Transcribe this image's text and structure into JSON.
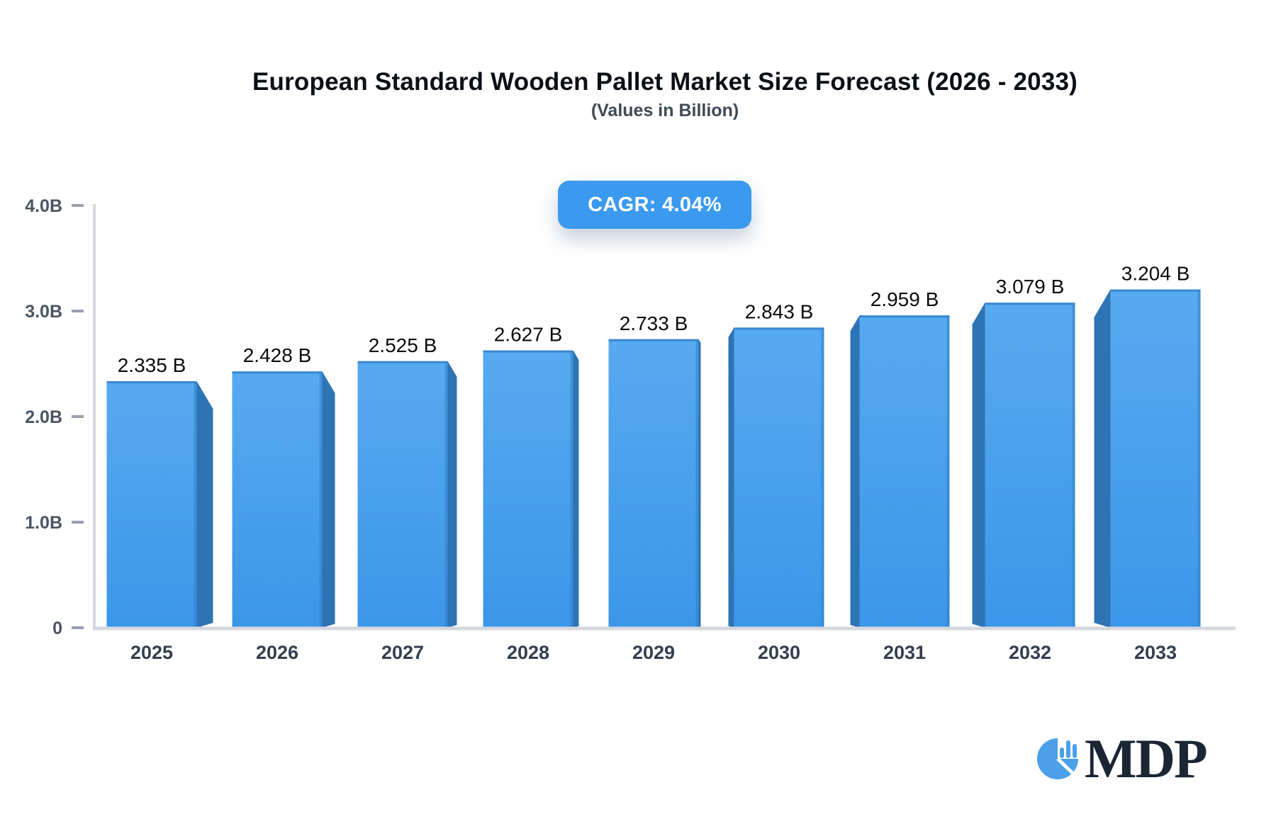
{
  "header": {
    "title": "European Standard Wooden Pallet Market Size Forecast (2026 - 2033)",
    "subtitle": "(Values in Billion)"
  },
  "badge": {
    "label": "CAGR: 4.04%",
    "bg": "#3b9af0",
    "text_color": "#ffffff"
  },
  "chart_data": {
    "type": "bar",
    "title": "European Standard Wooden Pallet Market Size Forecast (2026 - 2033)",
    "subtitle": "(Values in Billion)",
    "annotation": "CAGR: 4.04%",
    "categories": [
      "2025",
      "2026",
      "2027",
      "2028",
      "2029",
      "2030",
      "2031",
      "2032",
      "2033"
    ],
    "values": [
      2.335,
      2.428,
      2.525,
      2.627,
      2.733,
      2.843,
      2.959,
      3.079,
      3.204
    ],
    "value_labels": [
      "2.335 B",
      "2.428 B",
      "2.525 B",
      "2.627 B",
      "2.733 B",
      "2.843 B",
      "2.959 B",
      "3.079 B",
      "3.204 B"
    ],
    "unit": "Billion",
    "xlabel": "",
    "ylabel": "",
    "ylim": [
      0,
      4
    ],
    "grid": false,
    "legend": "none",
    "yticks": [
      {
        "value": 4,
        "label": "4.0B"
      },
      {
        "value": 3,
        "label": "3.0B"
      },
      {
        "value": 2,
        "label": "2.0B"
      },
      {
        "value": 1,
        "label": "1.0B"
      },
      {
        "value": 0,
        "label": "0"
      }
    ],
    "colors": {
      "bar_face_top": "#57aaef",
      "bar_face_bottom": "#3c96e9",
      "bar_side": "#2d74b4",
      "bar_top_edge": "#3c87d1",
      "bar_right_edge": "#2f80c6",
      "axis_line": "#d5d8de",
      "tick_dash": "#98a0ac",
      "tick_label": "#4a5563",
      "year_label": "#333f4f",
      "value_label": "#0a0c0f"
    }
  },
  "logo": {
    "text": "MDP",
    "text_color": "#1b2634",
    "icon": "pie-chart-bars-icon",
    "icon_color": "#4ba0e8"
  }
}
